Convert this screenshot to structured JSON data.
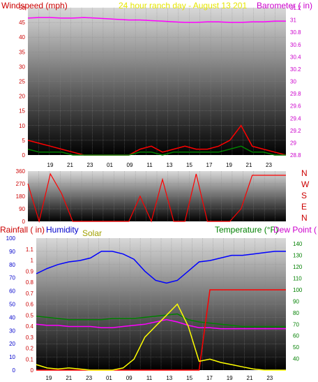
{
  "chart_data": [
    {
      "type": "line",
      "title": "24 hour ranch day - August 13 201",
      "ylabel_left": "Windspeed (mph)",
      "ylabel_right": "Barometer ( in)",
      "ylim_left": [
        0,
        50
      ],
      "ylim_right": [
        28.8,
        31.2
      ],
      "yticks_left": [
        "0",
        "5",
        "10",
        "15",
        "20",
        "25",
        "30",
        "35",
        "40",
        "45",
        "50"
      ],
      "yticks_right": [
        "28.8",
        "29",
        "29.2",
        "29.4",
        "29.6",
        "29.8",
        "30",
        "30.2",
        "30.4",
        "30.6",
        "30.8",
        "31",
        "31.2"
      ],
      "xticks": [
        "19",
        "21",
        "23",
        "01",
        "09",
        "11",
        "13",
        "15",
        "17",
        "19",
        "21",
        "23"
      ],
      "series": [
        {
          "color": "#ff00ff",
          "axis": "right",
          "values": [
            31.03,
            31.04,
            31.04,
            31.03,
            31.03,
            31.04,
            31.03,
            31.02,
            31.01,
            31,
            31,
            30.99,
            30.98,
            30.97,
            30.96,
            30.96,
            30.97,
            30.97,
            30.96,
            30.96,
            30.97,
            30.97,
            30.98,
            30.98
          ]
        },
        {
          "color": "#ff0000",
          "axis": "left",
          "values": [
            5,
            4,
            3,
            2,
            1,
            0,
            0,
            0,
            0,
            0,
            2,
            3,
            1,
            2,
            3,
            2,
            2,
            3,
            5,
            10,
            3,
            2,
            1,
            0
          ]
        },
        {
          "color": "#008000",
          "axis": "left",
          "values": [
            2,
            1,
            1,
            1,
            0,
            0,
            0,
            0,
            0,
            0,
            1,
            1,
            0,
            1,
            1,
            1,
            1,
            1,
            2,
            3,
            1,
            1,
            0,
            0
          ]
        }
      ]
    },
    {
      "type": "line",
      "ylim": [
        0,
        360
      ],
      "yticks": [
        "0",
        "90",
        "180",
        "270",
        "360"
      ],
      "compass_labels": [
        "N",
        "W",
        "S",
        "E",
        "N"
      ],
      "series": [
        {
          "color": "#ff0000",
          "values": [
            270,
            0,
            340,
            200,
            0,
            0,
            0,
            0,
            0,
            0,
            180,
            0,
            300,
            0,
            0,
            340,
            0,
            0,
            0,
            90,
            330,
            330,
            330,
            330
          ]
        }
      ]
    },
    {
      "type": "line",
      "labels": {
        "rain": "Rainfall ( in)",
        "humidity": "Humidity",
        "solar": "Solar",
        "temperature": "Temperature (°F)",
        "dewpoint": "Dew Point ("
      },
      "ylim_rain": [
        0,
        1.2
      ],
      "ylim_humidity": [
        0,
        100
      ],
      "ylim_temp": [
        30,
        145
      ],
      "yticks_humidity": [
        "0",
        "10",
        "20",
        "30",
        "40",
        "50",
        "60",
        "70",
        "80",
        "90",
        "100"
      ],
      "yticks_rain": [
        "0",
        "0.1",
        "0.2",
        "0.3",
        "0.4",
        "0.5",
        "0.6",
        "0.7",
        "0.8",
        "0.9",
        "1",
        "1.1"
      ],
      "yticks_temp": [
        "40",
        "50",
        "60",
        "70",
        "80",
        "90",
        "100",
        "110",
        "120",
        "130",
        "140"
      ],
      "xticks": [
        "19",
        "21",
        "23",
        "01",
        "09",
        "11",
        "13",
        "15",
        "17",
        "19",
        "21",
        "23"
      ],
      "series": [
        {
          "color": "#0000ff",
          "axis": "humidity",
          "values": [
            73,
            77,
            80,
            82,
            83,
            85,
            90,
            90,
            88,
            84,
            75,
            68,
            66,
            68,
            75,
            82,
            83,
            85,
            87,
            87,
            88,
            89,
            90,
            90
          ]
        },
        {
          "color": "#008000",
          "axis": "temp",
          "values": [
            77,
            76,
            75,
            74,
            74,
            74,
            74,
            75,
            75,
            75,
            76,
            77,
            78,
            79,
            74,
            72,
            71,
            70,
            69,
            68,
            68,
            68,
            68,
            68
          ]
        },
        {
          "color": "#ff00ff",
          "axis": "temp",
          "values": [
            70,
            69,
            69,
            68,
            68,
            68,
            67,
            67,
            68,
            69,
            70,
            72,
            74,
            72,
            69,
            67,
            67,
            66,
            66,
            66,
            66,
            66,
            66,
            66
          ]
        },
        {
          "color": "#ff0000",
          "axis": "temp",
          "values": [
            30,
            30,
            30,
            30,
            30,
            30,
            30,
            30,
            30,
            30,
            30,
            30,
            30,
            30,
            30,
            30,
            100,
            100,
            100,
            100,
            100,
            100,
            100,
            100
          ]
        },
        {
          "color": "#ffff00",
          "axis": "rain",
          "values": [
            0.05,
            0.02,
            0.01,
            0.02,
            0.01,
            0,
            0,
            0,
            0.02,
            0.1,
            0.3,
            0.4,
            0.5,
            0.6,
            0.4,
            0.08,
            0.1,
            0.07,
            0.05,
            0.03,
            0.01,
            0,
            0,
            0
          ]
        }
      ]
    }
  ]
}
